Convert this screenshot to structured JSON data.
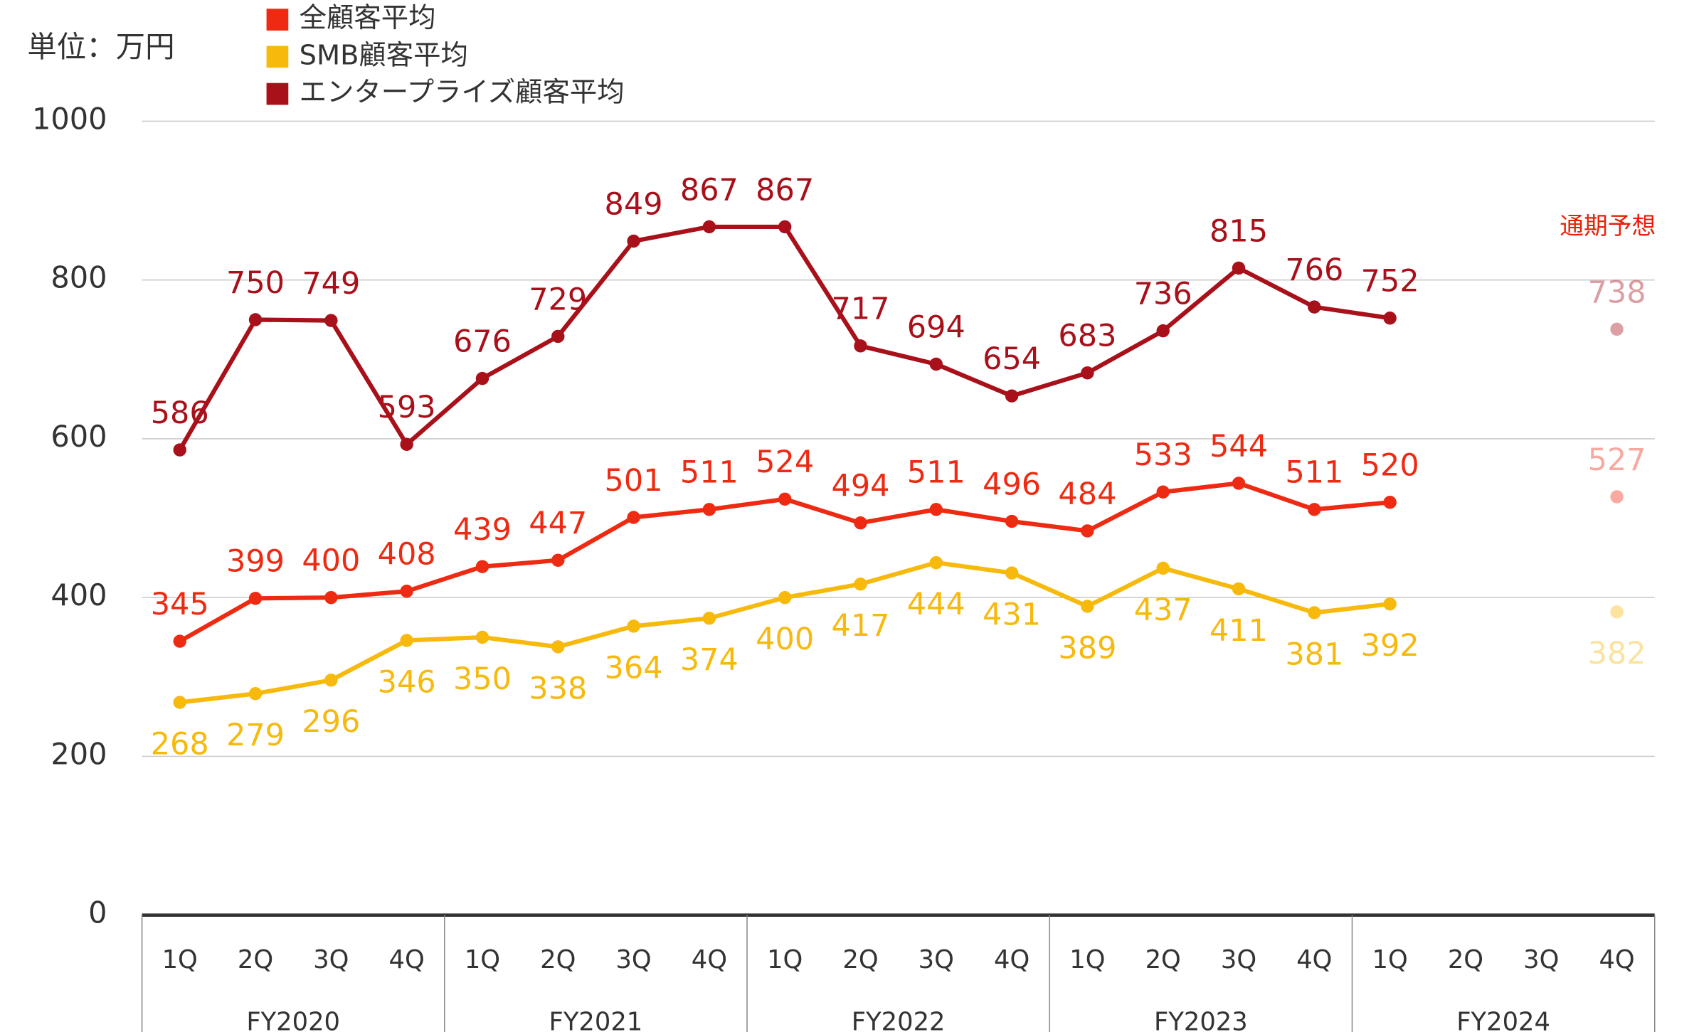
{
  "chart_data": {
    "type": "line",
    "unit_label": "単位：万円",
    "forecast_label": "通期予想",
    "categories": [
      "1Q",
      "2Q",
      "3Q",
      "4Q",
      "1Q",
      "2Q",
      "3Q",
      "4Q",
      "1Q",
      "2Q",
      "3Q",
      "4Q",
      "1Q",
      "2Q",
      "3Q",
      "4Q",
      "1Q",
      "2Q",
      "3Q",
      "4Q"
    ],
    "groups": [
      "FY2020",
      "FY2021",
      "FY2022",
      "FY2023",
      "FY2024"
    ],
    "ylim": [
      0,
      1000
    ],
    "yticks": [
      0,
      200,
      400,
      600,
      800,
      1000
    ],
    "grid": true,
    "series": [
      {
        "name": "全顧客平均",
        "color": "#ee2a12",
        "label_position": "above",
        "values": [
          345,
          399,
          400,
          408,
          439,
          447,
          501,
          511,
          524,
          494,
          511,
          496,
          484,
          533,
          544,
          511,
          520,
          null,
          null,
          null
        ],
        "forecast": 527
      },
      {
        "name": "SMB顧客平均",
        "color": "#f7b90c",
        "label_position": "below",
        "values": [
          268,
          279,
          296,
          346,
          350,
          338,
          364,
          374,
          400,
          417,
          444,
          431,
          389,
          437,
          411,
          381,
          392,
          null,
          null,
          null
        ],
        "forecast": 382
      },
      {
        "name": "エンタープライズ顧客平均",
        "color": "#a8101a",
        "label_position": "above",
        "values": [
          586,
          750,
          749,
          593,
          676,
          729,
          849,
          867,
          867,
          717,
          694,
          654,
          683,
          736,
          815,
          766,
          752,
          null,
          null,
          null
        ],
        "forecast": 738
      }
    ]
  }
}
